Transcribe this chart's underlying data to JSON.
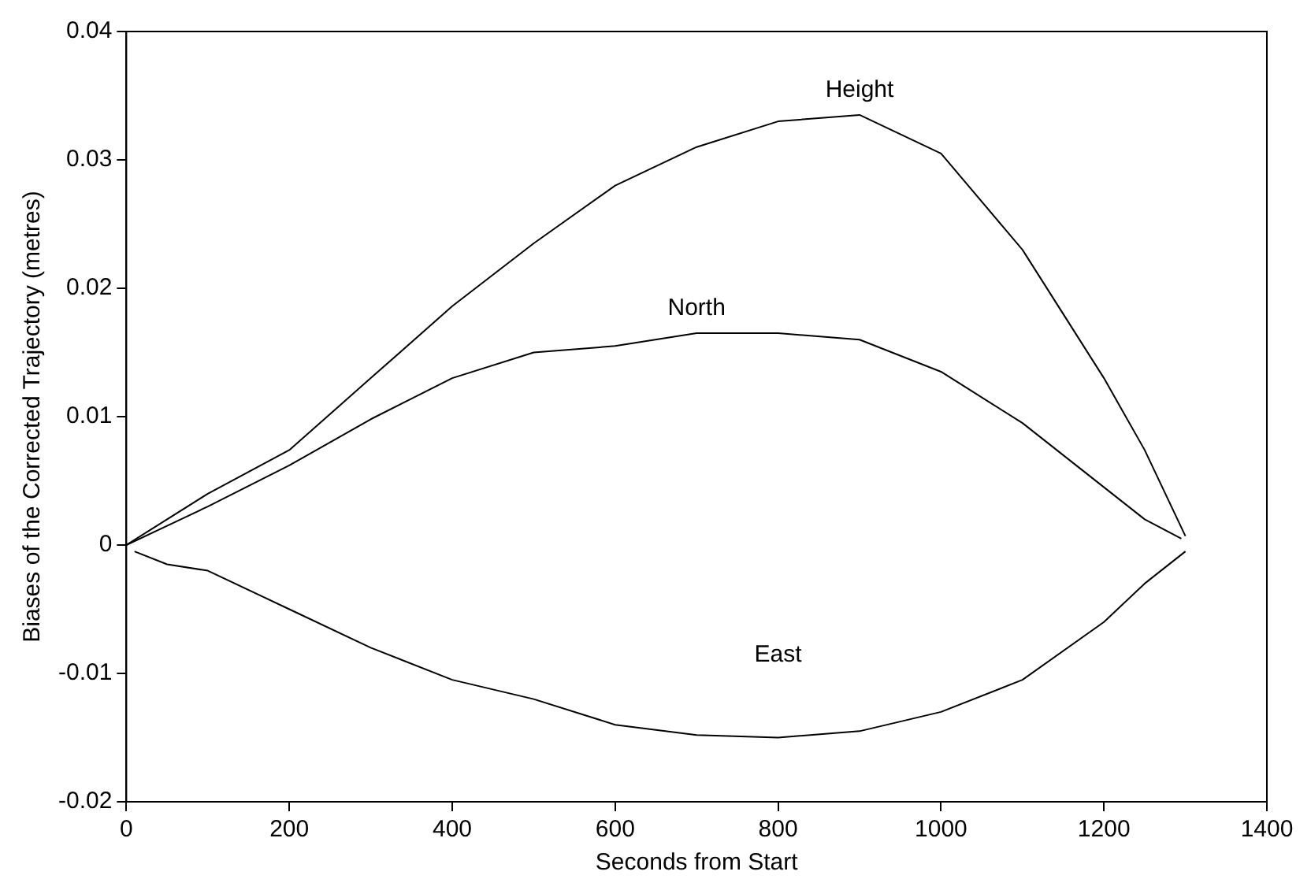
{
  "chart_data": {
    "type": "line",
    "xlabel": "Seconds from Start",
    "ylabel": "Biases of the Corrected Trajectory (metres)",
    "xlim": [
      0,
      1400
    ],
    "xticks": [
      0,
      200,
      400,
      600,
      800,
      1000,
      1200,
      1400
    ],
    "ylim": [
      -0.02,
      0.04
    ],
    "yticks": [
      -0.02,
      -0.01,
      0,
      0.01,
      0.02,
      0.03,
      0.04
    ],
    "grid": false,
    "legend": false,
    "marker": "none",
    "line_style": "solid",
    "series": [
      {
        "name": "Height",
        "color": "#000000",
        "x": [
          0,
          50,
          100,
          200,
          300,
          400,
          500,
          600,
          700,
          800,
          900,
          1000,
          1100,
          1150,
          1200,
          1250,
          1300
        ],
        "values": [
          0,
          0.002,
          0.004,
          0.0074,
          0.013,
          0.0186,
          0.0235,
          0.028,
          0.031,
          0.033,
          0.0335,
          0.0305,
          0.023,
          0.018,
          0.013,
          0.0074,
          0.0007
        ]
      },
      {
        "name": "North",
        "color": "#000000",
        "x": [
          0,
          50,
          100,
          200,
          300,
          400,
          500,
          600,
          700,
          800,
          900,
          1000,
          1100,
          1200,
          1250,
          1295
        ],
        "values": [
          0,
          0.0015,
          0.003,
          0.0062,
          0.0098,
          0.013,
          0.015,
          0.0155,
          0.0165,
          0.0165,
          0.016,
          0.0135,
          0.0095,
          0.0045,
          0.002,
          0.0005
        ]
      },
      {
        "name": "East",
        "color": "#000000",
        "x": [
          10,
          50,
          100,
          200,
          300,
          400,
          500,
          600,
          700,
          800,
          900,
          1000,
          1100,
          1200,
          1250,
          1300
        ],
        "values": [
          -0.0005,
          -0.0015,
          -0.002,
          -0.005,
          -0.008,
          -0.0105,
          -0.012,
          -0.014,
          -0.0148,
          -0.015,
          -0.0145,
          -0.013,
          -0.0105,
          -0.006,
          -0.003,
          -0.0005
        ]
      }
    ]
  }
}
